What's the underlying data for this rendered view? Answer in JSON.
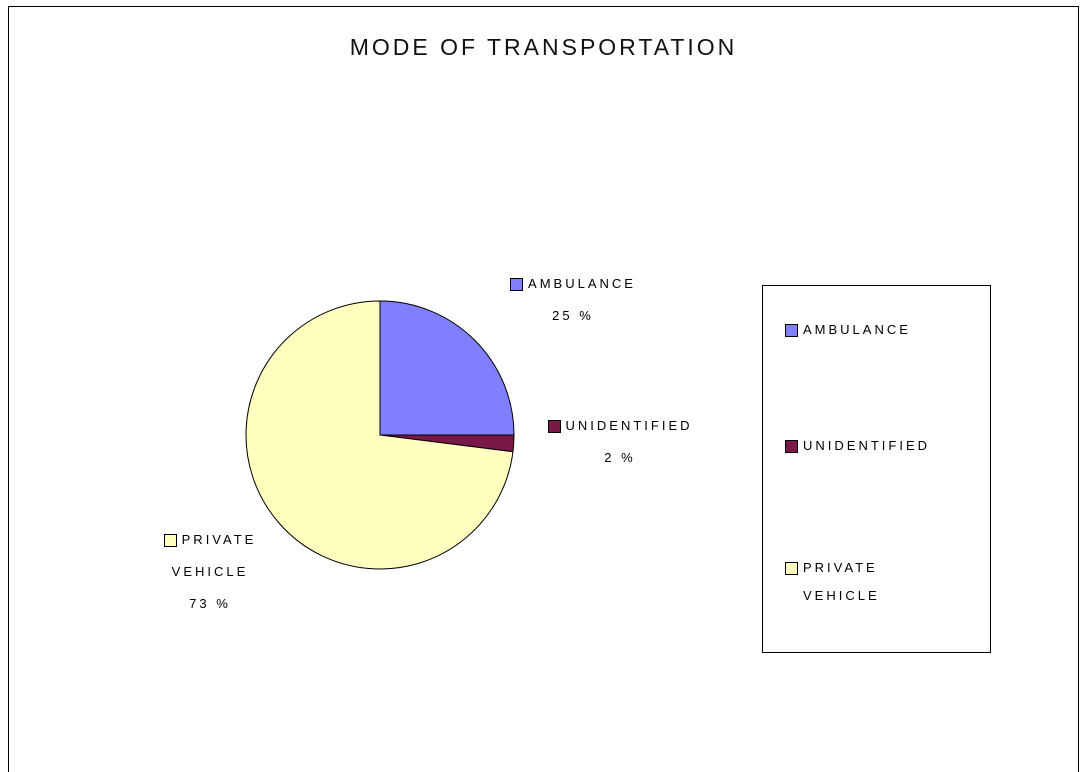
{
  "chart_data": {
    "type": "pie",
    "title": "MODE OF TRANSPORTATION",
    "categories": [
      "AMBULANCE",
      "UNIDENTIFIED",
      "PRIVATE VEHICLE"
    ],
    "values": [
      25,
      2,
      73
    ],
    "value_labels": [
      "25 %",
      "2 %",
      "73 %"
    ],
    "colors": [
      "#8080ff",
      "#7a1848",
      "#ffffc0"
    ],
    "legend": "right"
  }
}
